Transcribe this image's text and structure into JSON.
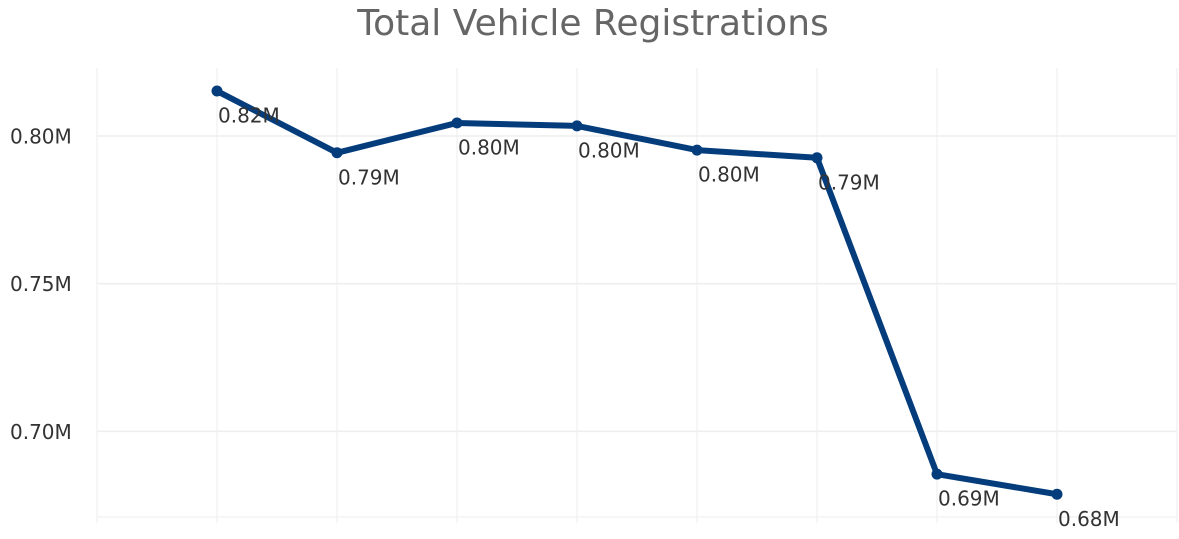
{
  "chart_data": {
    "type": "line",
    "title": "Total Vehicle Registrations",
    "categories": [
      null,
      null,
      null,
      null,
      null,
      null,
      null,
      null
    ],
    "series": [
      {
        "name": null,
        "color": "#053d7c",
        "values": [
          815200,
          794300,
          804400,
          803400,
          795200,
          792600,
          685500,
          678700
        ],
        "value_labels": [
          "0.82M",
          "0.79M",
          "0.80M",
          "0.80M",
          "0.80M",
          "0.79M",
          "0.69M",
          "0.68M"
        ]
      }
    ],
    "ylim": [
      671000,
      823000
    ],
    "yticks": [
      {
        "value": 700000,
        "label": "0.70M"
      },
      {
        "value": 750000,
        "label": "0.75M"
      },
      {
        "value": 800000,
        "label": "0.80M"
      }
    ],
    "grid": true
  }
}
